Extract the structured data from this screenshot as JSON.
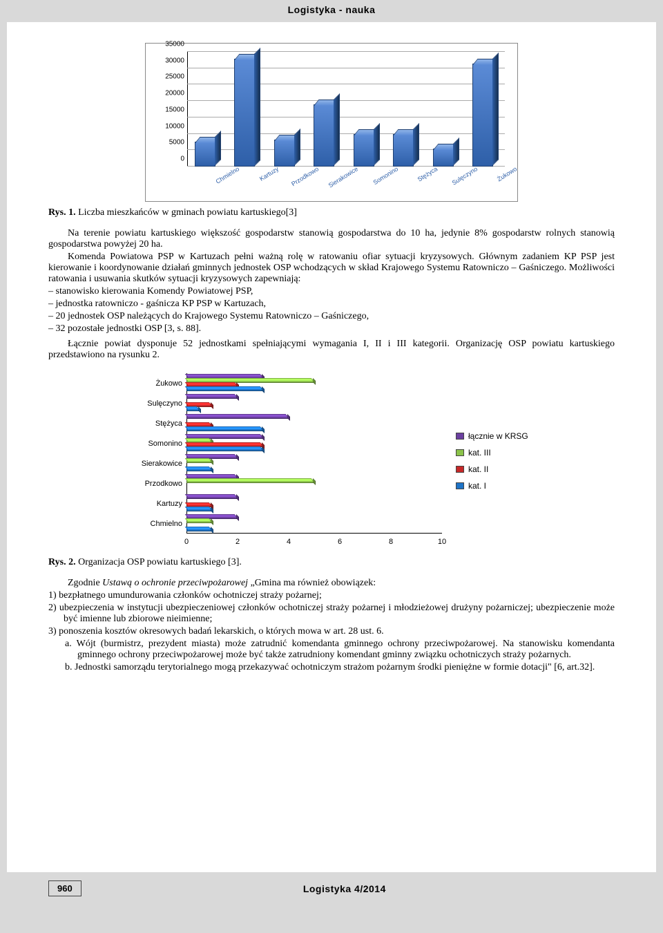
{
  "header": {
    "title": "Logistyka - nauka"
  },
  "chart1": {
    "type": "bar",
    "categories": [
      "Chmielno",
      "Kartuzy",
      "Przodkowo",
      "Sierakowice",
      "Somonino",
      "Stężyca",
      "Sulęczyno",
      "Żukowo"
    ],
    "values": [
      7500,
      33000,
      8200,
      19000,
      10000,
      10000,
      5500,
      31500
    ],
    "ylim": [
      0,
      35000
    ],
    "ytick_step": 5000,
    "yticks": [
      "0",
      "5000",
      "10000",
      "15000",
      "20000",
      "25000",
      "30000",
      "35000"
    ],
    "bar_color_top": "#5b8bd6",
    "bar_color_bottom": "#2e5fa8",
    "grid_color": "#aaaaaa",
    "border_color": "#888888",
    "background_color": "#ffffff"
  },
  "fig1_caption_b": "Rys. 1.",
  "fig1_caption_t": " Liczba mieszkańców w gminach powiatu kartuskiego[3]",
  "body": {
    "p1": "Na terenie powiatu kartuskiego większość gospodarstw stanowią gospodarstwa do 10 ha, jedynie 8% gospodarstw rolnych stanowią gospodarstwa powyżej 20 ha.",
    "p2": "Komenda Powiatowa PSP w Kartuzach pełni ważną rolę w ratowaniu ofiar sytuacji kryzysowych. Głównym zadaniem KP PSP jest kierowanie i koordynowanie działań gminnych jednostek OSP wchodzących w skład Krajowego Systemu Ratowniczo – Gaśniczego. Możliwości ratowania i usuwania skutków sytuacji kryzysowych zapewniają:",
    "bullets": [
      "stanowisko kierowania Komendy Powiatowej PSP,",
      "jednostka ratowniczo - gaśnicza KP PSP w Kartuzach,",
      "20 jednostek OSP należących do Krajowego Systemu Ratowniczo – Gaśniczego,",
      "32 pozostałe jednostki OSP [3, s. 88]."
    ],
    "p3": "Łącznie powiat dysponuje 52 jednostkami spełniającymi wymagania I, II i III kategorii. Organizację OSP powiatu kartuskiego przedstawiono na rysunku 2."
  },
  "chart2": {
    "type": "bar-horizontal-grouped",
    "categories": [
      "Żukowo",
      "Sulęczyno",
      "Stężyca",
      "Somonino",
      "Sierakowice",
      "Przodkowo",
      "Kartuzy",
      "Chmielno"
    ],
    "series": [
      {
        "name": "łącznie w KRSG",
        "color": "#6b3fa0"
      },
      {
        "name": "kat. III",
        "color": "#8bc34a"
      },
      {
        "name": "kat. II",
        "color": "#c62828"
      },
      {
        "name": "kat. I",
        "color": "#1e73c6"
      }
    ],
    "data": {
      "Żukowo": {
        "krsg": 3.0,
        "k3": 5.0,
        "k2": 2.0,
        "k1": 3.0
      },
      "Sulęczyno": {
        "krsg": 2.0,
        "k3": 0.0,
        "k2": 1.0,
        "k1": 0.5
      },
      "Stężyca": {
        "krsg": 4.0,
        "k3": 0.0,
        "k2": 1.0,
        "k1": 3.0
      },
      "Somonino": {
        "krsg": 3.0,
        "k3": 1.0,
        "k2": 3.0,
        "k1": 3.0
      },
      "Sierakowice": {
        "krsg": 2.0,
        "k3": 1.0,
        "k2": 0.0,
        "k1": 1.0
      },
      "Przodkowo": {
        "krsg": 2.0,
        "k3": 5.0,
        "k2": 0.0,
        "k1": 0.0
      },
      "Kartuzy": {
        "krsg": 2.0,
        "k3": 0.0,
        "k2": 1.0,
        "k1": 1.0
      },
      "Chmielno": {
        "krsg": 2.0,
        "k3": 1.0,
        "k2": 0.0,
        "k1": 1.0
      }
    },
    "xlim": [
      0,
      10
    ],
    "xtick_step": 2,
    "xticks": [
      "0",
      "2",
      "4",
      "6",
      "8",
      "10"
    ]
  },
  "fig2_caption_b": "Rys. 2.",
  "fig2_caption_t": " Organizacja OSP powiatu kartuskiego [3].",
  "lower": {
    "lead_prefix": "Zgodnie ",
    "lead_italic": "Ustawą o ochronie przeciwpożarowej ",
    "lead_rest": "„Gmina ma również obowiązek:",
    "items": [
      "1) bezpłatnego umundurowania członków ochotniczej straży pożarnej;",
      "2) ubezpieczenia w instytucji ubezpieczeniowej członków ochotniczej straży pożarnej i młodzieżowej drużyny pożarniczej; ubezpieczenie może być imienne lub zbiorowe nieimienne;",
      "3) ponoszenia kosztów okresowych badań lekarskich, o których mowa w art. 28 ust. 6."
    ],
    "sub": [
      "a. Wójt (burmistrz, prezydent miasta) może zatrudnić komendanta gminnego ochrony przeciwpożarowej. Na stanowisku komendanta gminnego ochrony przeciwpożarowej może być także zatrudniony komendant gminny związku ochotniczych straży pożarnych.",
      "b. Jednostki samorządu terytorialnego mogą przekazywać ochotniczym strażom pożarnym środki pieniężne w formie dotacji\" [6, art.32]."
    ]
  },
  "footer": {
    "page": "960",
    "journal": "Logistyka 4/2014"
  }
}
